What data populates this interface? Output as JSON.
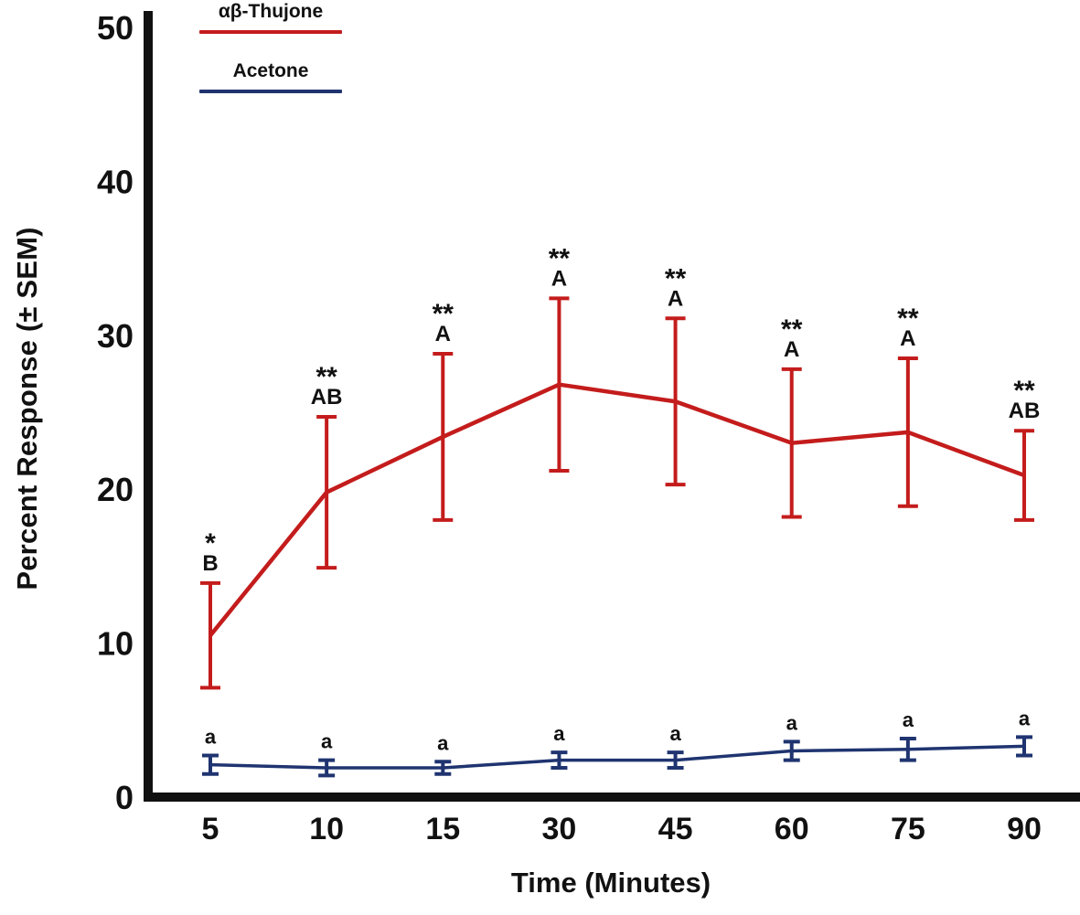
{
  "figure": {
    "background": "#ffffff",
    "axis_color": "#111111"
  },
  "chart_data": {
    "type": "line",
    "title": "",
    "xlabel": "Time (Minutes)",
    "ylabel": "Percent Response (± SEM)",
    "x_categories": [
      "5",
      "10",
      "15",
      "30",
      "45",
      "60",
      "75",
      "90"
    ],
    "y_ticks": [
      "0",
      "10",
      "20",
      "30",
      "40",
      "50"
    ],
    "ylim": [
      0,
      50
    ],
    "grid": false,
    "legend_position": "top-left-inside",
    "error_bars": "± SEM",
    "series": [
      {
        "id": "thujone",
        "name": "αβ-Thujone",
        "color": "#c41c1c",
        "values": [
          10.5,
          19.8,
          23.4,
          26.8,
          25.7,
          23.0,
          23.7,
          20.9
        ],
        "sem": [
          3.4,
          4.9,
          5.4,
          5.6,
          5.4,
          4.8,
          4.8,
          2.9
        ],
        "sig_labels": [
          "*",
          "**",
          "**",
          "**",
          "**",
          "**",
          "**",
          "**"
        ],
        "letter_labels": [
          "B",
          "AB",
          "A",
          "A",
          "A",
          "A",
          "A",
          "AB"
        ]
      },
      {
        "id": "acetone",
        "name": "Acetone",
        "color": "#1f3470",
        "values": [
          2.1,
          1.9,
          1.9,
          2.4,
          2.4,
          3.0,
          3.1,
          3.3
        ],
        "sem": [
          0.6,
          0.5,
          0.4,
          0.5,
          0.5,
          0.6,
          0.7,
          0.6
        ],
        "sig_labels": [
          "",
          "",
          "",
          "",
          "",
          "",
          "",
          ""
        ],
        "letter_labels": [
          "a",
          "a",
          "a",
          "a",
          "a",
          "a",
          "a",
          "a"
        ]
      }
    ]
  }
}
